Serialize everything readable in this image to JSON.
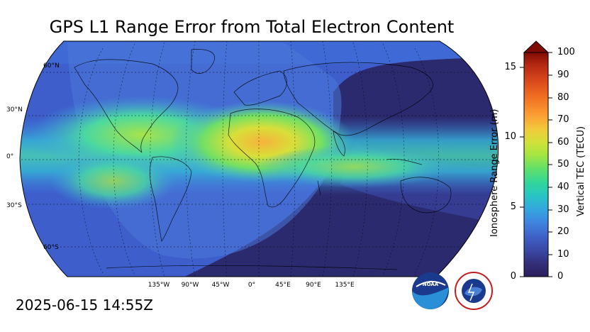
{
  "title": "GPS L1 Range Error from Total Electron Content",
  "timestamp": "2025-06-15 14:55Z",
  "map": {
    "projection": "Robinson",
    "lat_labels": [
      "60°N",
      "30°N",
      "0°",
      "30°S",
      "60°S"
    ],
    "lon_labels": [
      "135°W",
      "90°W",
      "45°W",
      "0°",
      "45°E",
      "90°E",
      "135°E"
    ]
  },
  "colorbar": {
    "left_label": "Ionosphere Range Error (m)",
    "right_label": "Vertical TEC (TECU)",
    "left_ticks": [
      "0",
      "5",
      "10",
      "15"
    ],
    "right_ticks": [
      "0",
      "10",
      "20",
      "30",
      "40",
      "50",
      "60",
      "70",
      "80",
      "90",
      "100"
    ],
    "colors": [
      "#2b1e5a",
      "#33307a",
      "#3a49a8",
      "#3f62c8",
      "#3f84e0",
      "#34a6df",
      "#28c4c5",
      "#32d59a",
      "#5fe06b",
      "#a2e544",
      "#d2e03a",
      "#f2c93c",
      "#fb9e34",
      "#f17022",
      "#d7451c",
      "#b02610",
      "#7e0c05"
    ]
  },
  "logos": {
    "noaa": "NOAA",
    "nws": "NATIONAL WEATHER SERVICE"
  }
}
